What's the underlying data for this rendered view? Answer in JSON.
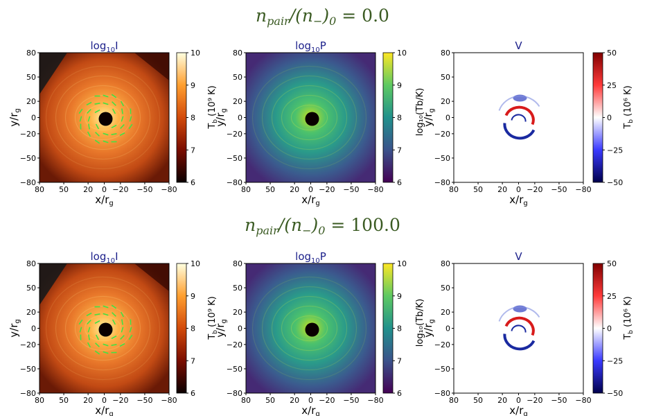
{
  "rows": [
    {
      "title": {
        "n": "n",
        "sub1": "pair",
        "slash": "/(n",
        "sub2": "−",
        "tail": ")",
        "sub3": "0",
        "value": " = 0.0"
      },
      "panels": [
        {
          "title_base": "log",
          "title_sub": "10",
          "title_tail": "I",
          "cbar_label": "T",
          "cbar_label_sub": "b",
          "cbar_label_tail": " (10⁹ K)",
          "cmap": "hot"
        },
        {
          "title_base": "log",
          "title_sub": "10",
          "title_tail": "P",
          "cbar_label": "log₁₀(Tb/K)",
          "cmap": "viridis"
        },
        {
          "title_base": "",
          "title_sub": "",
          "title_tail": "V",
          "cbar_label": "T",
          "cbar_label_sub": "b",
          "cbar_label_tail": " (10⁶ K)",
          "cmap": "bwr"
        }
      ]
    },
    {
      "title": {
        "n": "n",
        "sub1": "pair",
        "slash": "/(n",
        "sub2": "−",
        "tail": ")",
        "sub3": "0",
        "value": " = 100.0"
      },
      "panels": [
        {
          "title_base": "log",
          "title_sub": "10",
          "title_tail": "I",
          "cbar_label": "T",
          "cbar_label_sub": "b",
          "cbar_label_tail": " (10⁹ K)",
          "cmap": "hot"
        },
        {
          "title_base": "log",
          "title_sub": "10",
          "title_tail": "P",
          "cbar_label": "log₁₀(Tb/K)",
          "cmap": "viridis"
        },
        {
          "title_base": "",
          "title_sub": "",
          "title_tail": "V",
          "cbar_label": "T",
          "cbar_label_sub": "b",
          "cbar_label_tail": " (10⁶ K)",
          "cmap": "bwr"
        }
      ]
    }
  ],
  "chart_data": {
    "type": "heatmap",
    "x_ticks": [
      "80",
      "50",
      "20",
      "0",
      "−20",
      "−50",
      "−80"
    ],
    "y_ticks": [
      "80",
      "50",
      "20",
      "0",
      "−20",
      "−50",
      "−80"
    ],
    "x_tick_values": [
      80,
      50,
      20,
      0,
      -20,
      -50,
      -80
    ],
    "y_tick_values": [
      80,
      50,
      20,
      0,
      -20,
      -50,
      -80
    ],
    "xlabel": "x/r",
    "xlabel_sub": "g",
    "ylabel": "y/r",
    "ylabel_sub": "g",
    "xlim": [
      80,
      -80
    ],
    "ylim": [
      -80,
      80
    ],
    "colorbars": {
      "hot": {
        "range": [
          6,
          10
        ],
        "ticks": [
          "6",
          "7",
          "8",
          "9",
          "10"
        ],
        "tick_values": [
          6,
          7,
          8,
          9,
          10
        ]
      },
      "viridis": {
        "range": [
          6,
          10
        ],
        "ticks": [
          "6",
          "7",
          "8",
          "9",
          "10"
        ],
        "tick_values": [
          6,
          7,
          8,
          9,
          10
        ]
      },
      "bwr": {
        "range": [
          -50,
          50
        ],
        "ticks": [
          "50",
          "25",
          "0",
          "−25",
          "−50"
        ],
        "tick_values": [
          50,
          25,
          0,
          -25,
          -50
        ]
      }
    },
    "polarization_ticks_color": "#44e044",
    "colors": {
      "hot_bg": "#c24a14",
      "viridis_bg": "#3b5a8e",
      "title_blue": "#1b1f8a",
      "row_title_green": "#3a5a22"
    }
  }
}
